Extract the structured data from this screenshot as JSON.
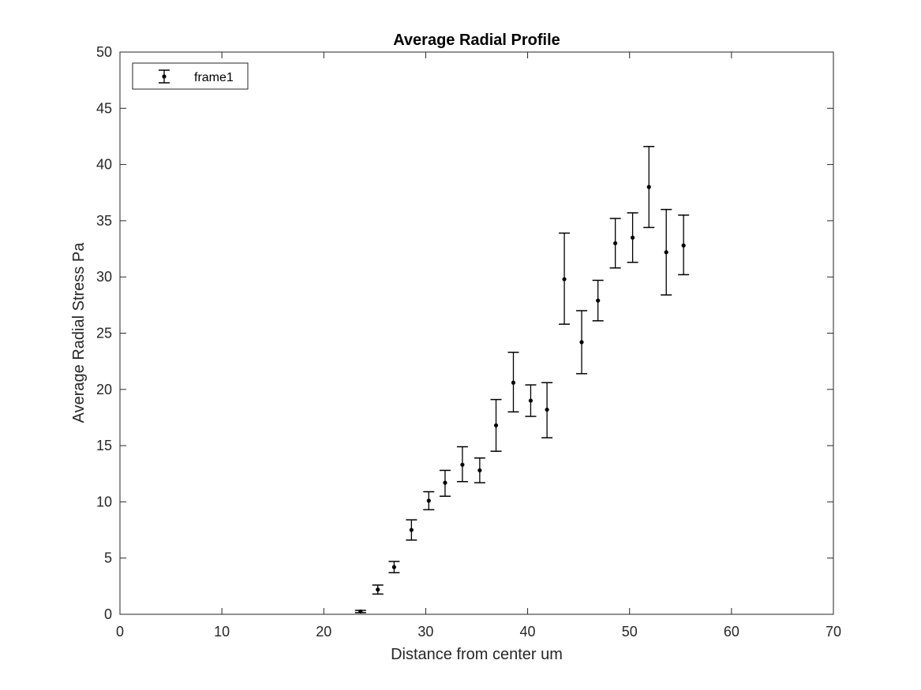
{
  "chart_data": {
    "type": "scatter",
    "title": "Average Radial Profile",
    "xlabel": "Distance from center um",
    "ylabel": "Average Radial Stress Pa",
    "xlim": [
      0,
      70
    ],
    "ylim": [
      0,
      50
    ],
    "xticks": [
      0,
      10,
      20,
      30,
      40,
      50,
      60,
      70
    ],
    "yticks": [
      0,
      5,
      10,
      15,
      20,
      25,
      30,
      35,
      40,
      45,
      50
    ],
    "grid": false,
    "legend_position": "top-left",
    "series": [
      {
        "name": "frame1",
        "style": "point-with-errorbars",
        "color": "#000000",
        "points": [
          {
            "x": 23.6,
            "y": 0.25,
            "lower": 0.15,
            "upper": 0.35
          },
          {
            "x": 25.3,
            "y": 2.2,
            "lower": 1.8,
            "upper": 2.6
          },
          {
            "x": 26.9,
            "y": 4.2,
            "lower": 3.7,
            "upper": 4.7
          },
          {
            "x": 28.6,
            "y": 7.5,
            "lower": 6.6,
            "upper": 8.4
          },
          {
            "x": 30.3,
            "y": 10.1,
            "lower": 9.3,
            "upper": 10.9
          },
          {
            "x": 31.9,
            "y": 11.7,
            "lower": 10.5,
            "upper": 12.8
          },
          {
            "x": 33.6,
            "y": 13.3,
            "lower": 11.8,
            "upper": 14.9
          },
          {
            "x": 35.3,
            "y": 12.8,
            "lower": 11.7,
            "upper": 13.9
          },
          {
            "x": 36.9,
            "y": 16.8,
            "lower": 14.5,
            "upper": 19.1
          },
          {
            "x": 38.6,
            "y": 20.6,
            "lower": 18.0,
            "upper": 23.3
          },
          {
            "x": 40.3,
            "y": 19.0,
            "lower": 17.6,
            "upper": 20.4
          },
          {
            "x": 41.9,
            "y": 18.2,
            "lower": 15.7,
            "upper": 20.6
          },
          {
            "x": 43.6,
            "y": 29.8,
            "lower": 25.8,
            "upper": 33.9
          },
          {
            "x": 45.3,
            "y": 24.2,
            "lower": 21.4,
            "upper": 27.0
          },
          {
            "x": 46.9,
            "y": 27.9,
            "lower": 26.1,
            "upper": 29.7
          },
          {
            "x": 48.6,
            "y": 33.0,
            "lower": 30.8,
            "upper": 35.2
          },
          {
            "x": 50.3,
            "y": 33.5,
            "lower": 31.3,
            "upper": 35.7
          },
          {
            "x": 51.9,
            "y": 38.0,
            "lower": 34.4,
            "upper": 41.6
          },
          {
            "x": 53.6,
            "y": 32.2,
            "lower": 28.4,
            "upper": 36.0
          },
          {
            "x": 55.3,
            "y": 32.8,
            "lower": 30.2,
            "upper": 35.5
          }
        ]
      }
    ]
  }
}
